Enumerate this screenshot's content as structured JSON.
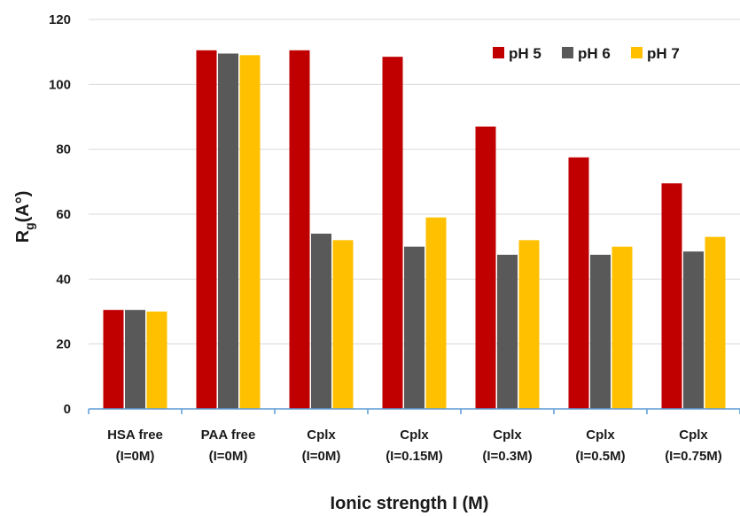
{
  "chart_data": {
    "type": "bar",
    "title": "",
    "xlabel": "Ionic strength I (M)",
    "ylabel_main": "R",
    "ylabel_sub": "g",
    "ylabel_rest": "(A°)",
    "ylim": [
      0,
      120
    ],
    "yticks": [
      0,
      20,
      40,
      60,
      80,
      100,
      120
    ],
    "grid": true,
    "legend_position": "top-right",
    "categories": [
      [
        "HSA free",
        "(I=0M)"
      ],
      [
        "PAA free",
        "(I=0M)"
      ],
      [
        "Cplx",
        "(I=0M)"
      ],
      [
        "Cplx",
        "(I=0.15M)"
      ],
      [
        "Cplx",
        "(I=0.3M)"
      ],
      [
        "Cplx",
        "(I=0.5M)"
      ],
      [
        "Cplx",
        "(I=0.75M)"
      ]
    ],
    "series": [
      {
        "name": "pH 5",
        "color": "#c00000",
        "values": [
          30.5,
          110.5,
          110.5,
          108.5,
          87,
          77.5,
          69.5
        ]
      },
      {
        "name": "pH 6",
        "color": "#595959",
        "values": [
          30.5,
          109.5,
          54,
          50,
          47.5,
          47.5,
          48.5
        ]
      },
      {
        "name": "pH 7",
        "color": "#ffc000",
        "values": [
          30,
          109,
          52,
          59,
          52,
          50,
          53
        ]
      }
    ]
  }
}
